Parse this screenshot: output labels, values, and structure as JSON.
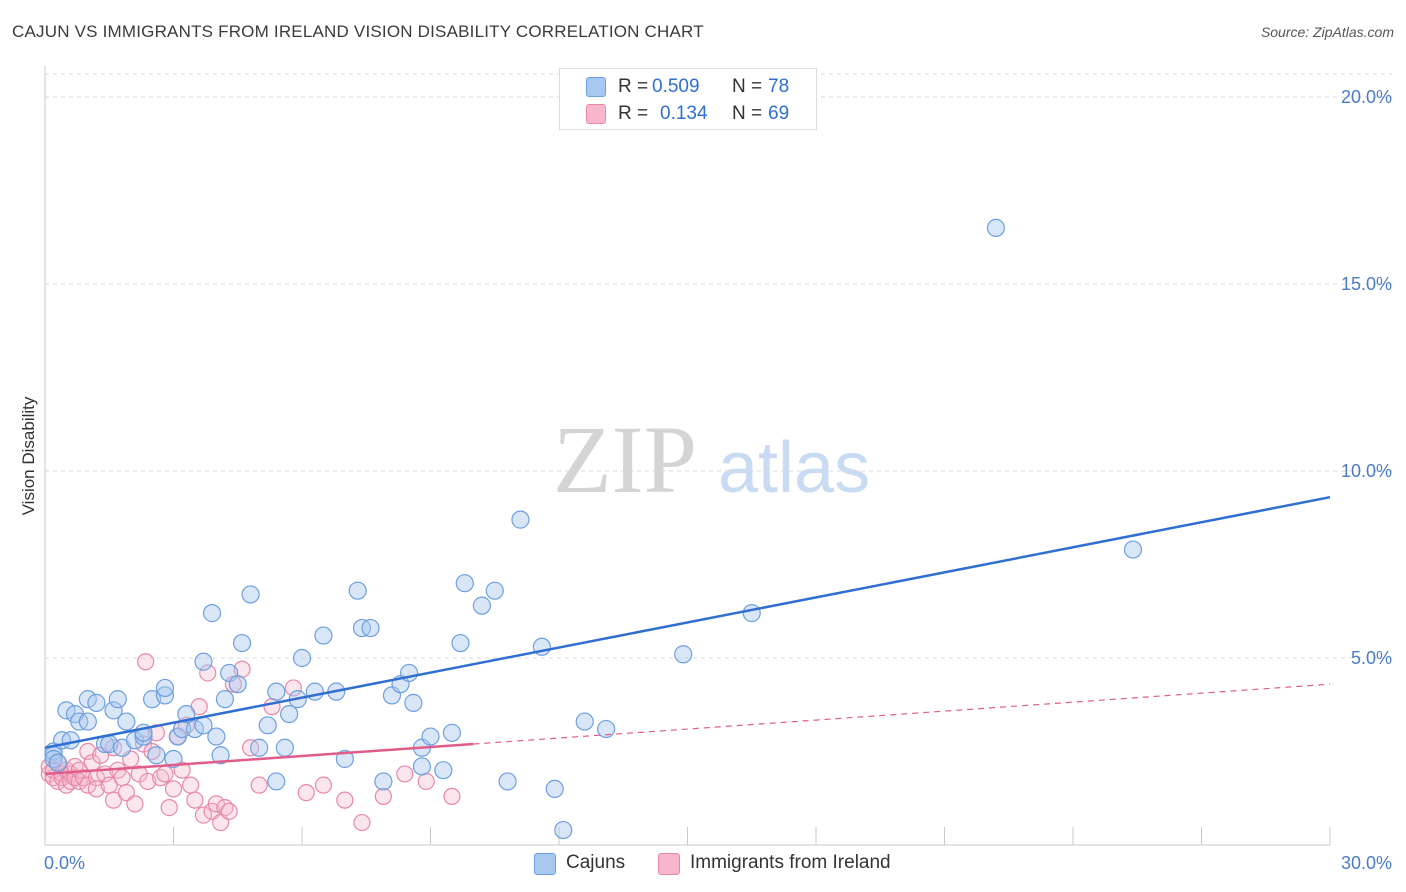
{
  "header": {
    "title": "CAJUN VS IMMIGRANTS FROM IRELAND VISION DISABILITY CORRELATION CHART",
    "source": "Source: ZipAtlas.com"
  },
  "watermark": {
    "zip": "ZIP",
    "atlas": "atlas"
  },
  "legend": {
    "r_label": "R =",
    "n_label": "N =",
    "entries": [
      {
        "name": "Cajuns",
        "r": "0.509",
        "n": "78"
      },
      {
        "name": "Immigrants from Ireland",
        "r": "0.134",
        "n": "69"
      }
    ]
  },
  "colors": {
    "blue_fill": "#a9c8f0",
    "blue_stroke": "#6d9fe0",
    "blue_line": "#2f6fd1",
    "pink_fill": "#f7b6cb",
    "pink_stroke": "#e887a8",
    "pink_line": "#e05c8a",
    "tick_text": "#4a7cc9",
    "grid": "#d9d9d9"
  },
  "chart_data": {
    "type": "scatter",
    "title": "CAJUN VS IMMIGRANTS FROM IRELAND VISION DISABILITY CORRELATION CHART",
    "xlabel": "",
    "ylabel": "Vision Disability",
    "xlim": [
      0,
      30
    ],
    "ylim": [
      0,
      20.5
    ],
    "x_tick_labels": [
      "0.0%",
      "30.0%"
    ],
    "y_ticks": [
      5,
      10,
      15,
      20
    ],
    "y_tick_labels": [
      "5.0%",
      "10.0%",
      "15.0%",
      "20.0%"
    ],
    "grid": "horizontal dashed",
    "legend_position": "top-center",
    "series": [
      {
        "name": "Cajuns",
        "r": 0.509,
        "n": 78,
        "trend": {
          "x": [
            0,
            30
          ],
          "y": [
            2.6,
            9.3
          ],
          "style": "solid"
        },
        "points": [
          [
            0.2,
            2.4
          ],
          [
            0.2,
            2.5
          ],
          [
            0.2,
            2.3
          ],
          [
            0.3,
            2.2
          ],
          [
            0.4,
            2.8
          ],
          [
            0.5,
            3.6
          ],
          [
            0.6,
            2.8
          ],
          [
            0.7,
            3.5
          ],
          [
            0.8,
            3.3
          ],
          [
            1.0,
            3.3
          ],
          [
            1.0,
            3.9
          ],
          [
            1.2,
            3.8
          ],
          [
            1.4,
            2.7
          ],
          [
            1.5,
            2.7
          ],
          [
            1.6,
            3.6
          ],
          [
            1.7,
            3.9
          ],
          [
            1.8,
            2.6
          ],
          [
            1.9,
            3.3
          ],
          [
            2.1,
            2.8
          ],
          [
            2.3,
            2.9
          ],
          [
            2.3,
            3.0
          ],
          [
            2.5,
            3.9
          ],
          [
            2.6,
            2.4
          ],
          [
            2.8,
            4.0
          ],
          [
            2.8,
            4.2
          ],
          [
            3.0,
            2.3
          ],
          [
            3.1,
            2.9
          ],
          [
            3.2,
            3.1
          ],
          [
            3.3,
            3.5
          ],
          [
            3.5,
            3.1
          ],
          [
            3.7,
            3.2
          ],
          [
            3.7,
            4.9
          ],
          [
            3.9,
            6.2
          ],
          [
            4.0,
            2.9
          ],
          [
            4.1,
            2.4
          ],
          [
            4.2,
            3.9
          ],
          [
            4.3,
            4.6
          ],
          [
            4.5,
            4.3
          ],
          [
            4.6,
            5.4
          ],
          [
            4.8,
            6.7
          ],
          [
            5.0,
            2.6
          ],
          [
            5.2,
            3.2
          ],
          [
            5.4,
            4.1
          ],
          [
            5.4,
            1.7
          ],
          [
            5.6,
            2.6
          ],
          [
            5.7,
            3.5
          ],
          [
            5.9,
            3.9
          ],
          [
            6.0,
            5.0
          ],
          [
            6.3,
            4.1
          ],
          [
            6.5,
            5.6
          ],
          [
            6.8,
            4.1
          ],
          [
            7.0,
            2.3
          ],
          [
            7.3,
            6.8
          ],
          [
            7.4,
            5.8
          ],
          [
            7.6,
            5.8
          ],
          [
            7.9,
            1.7
          ],
          [
            8.1,
            4.0
          ],
          [
            8.3,
            4.3
          ],
          [
            8.5,
            4.6
          ],
          [
            8.6,
            3.8
          ],
          [
            8.8,
            2.1
          ],
          [
            8.8,
            2.6
          ],
          [
            9.0,
            2.9
          ],
          [
            9.3,
            2.0
          ],
          [
            9.5,
            3.0
          ],
          [
            9.7,
            5.4
          ],
          [
            9.8,
            7.0
          ],
          [
            10.2,
            6.4
          ],
          [
            10.5,
            6.8
          ],
          [
            10.8,
            1.7
          ],
          [
            11.1,
            8.7
          ],
          [
            11.6,
            5.3
          ],
          [
            11.9,
            1.5
          ],
          [
            12.1,
            0.4
          ],
          [
            12.6,
            3.3
          ],
          [
            13.1,
            3.1
          ],
          [
            14.9,
            5.1
          ],
          [
            16.5,
            6.2
          ],
          [
            22.2,
            16.5
          ],
          [
            25.4,
            7.9
          ]
        ]
      },
      {
        "name": "Immigrants from Ireland",
        "r": 0.134,
        "n": 69,
        "trend": {
          "x": [
            0,
            10
          ],
          "y": [
            1.9,
            2.7
          ],
          "style": "solid",
          "extension": {
            "x": [
              10,
              30
            ],
            "y": [
              2.7,
              4.3
            ],
            "style": "dashed"
          }
        },
        "points": [
          [
            0.1,
            1.9
          ],
          [
            0.1,
            2.1
          ],
          [
            0.2,
            1.8
          ],
          [
            0.2,
            2.0
          ],
          [
            0.3,
            2.2
          ],
          [
            0.3,
            1.7
          ],
          [
            0.4,
            1.9
          ],
          [
            0.4,
            1.8
          ],
          [
            0.5,
            1.6
          ],
          [
            0.5,
            2.0
          ],
          [
            0.6,
            1.9
          ],
          [
            0.6,
            1.7
          ],
          [
            0.7,
            1.8
          ],
          [
            0.7,
            2.1
          ],
          [
            0.8,
            1.7
          ],
          [
            0.8,
            2.0
          ],
          [
            0.9,
            1.8
          ],
          [
            1.0,
            2.5
          ],
          [
            1.0,
            1.6
          ],
          [
            1.1,
            2.2
          ],
          [
            1.2,
            1.8
          ],
          [
            1.2,
            1.5
          ],
          [
            1.3,
            2.4
          ],
          [
            1.4,
            1.9
          ],
          [
            1.5,
            1.6
          ],
          [
            1.6,
            2.6
          ],
          [
            1.6,
            1.2
          ],
          [
            1.7,
            2.0
          ],
          [
            1.8,
            1.8
          ],
          [
            1.9,
            1.4
          ],
          [
            2.0,
            2.3
          ],
          [
            2.1,
            1.1
          ],
          [
            2.2,
            1.9
          ],
          [
            2.3,
            2.7
          ],
          [
            2.4,
            1.7
          ],
          [
            2.5,
            2.5
          ],
          [
            2.6,
            3.0
          ],
          [
            2.7,
            1.8
          ],
          [
            2.8,
            1.9
          ],
          [
            2.9,
            1.0
          ],
          [
            3.0,
            1.5
          ],
          [
            3.1,
            2.9
          ],
          [
            3.2,
            2.0
          ],
          [
            3.3,
            3.2
          ],
          [
            3.4,
            1.6
          ],
          [
            3.5,
            1.2
          ],
          [
            3.6,
            3.7
          ],
          [
            3.7,
            0.8
          ],
          [
            3.8,
            4.6
          ],
          [
            3.9,
            0.9
          ],
          [
            4.0,
            1.1
          ],
          [
            4.1,
            0.6
          ],
          [
            4.2,
            1.0
          ],
          [
            4.3,
            0.9
          ],
          [
            4.4,
            4.3
          ],
          [
            4.6,
            4.7
          ],
          [
            4.8,
            2.6
          ],
          [
            5.0,
            1.6
          ],
          [
            5.3,
            3.7
          ],
          [
            5.8,
            4.2
          ],
          [
            6.1,
            1.4
          ],
          [
            6.5,
            1.6
          ],
          [
            7.0,
            1.2
          ],
          [
            7.4,
            0.6
          ],
          [
            7.9,
            1.3
          ],
          [
            8.4,
            1.9
          ],
          [
            8.9,
            1.7
          ],
          [
            9.5,
            1.3
          ],
          [
            2.35,
            4.9
          ]
        ]
      }
    ]
  }
}
